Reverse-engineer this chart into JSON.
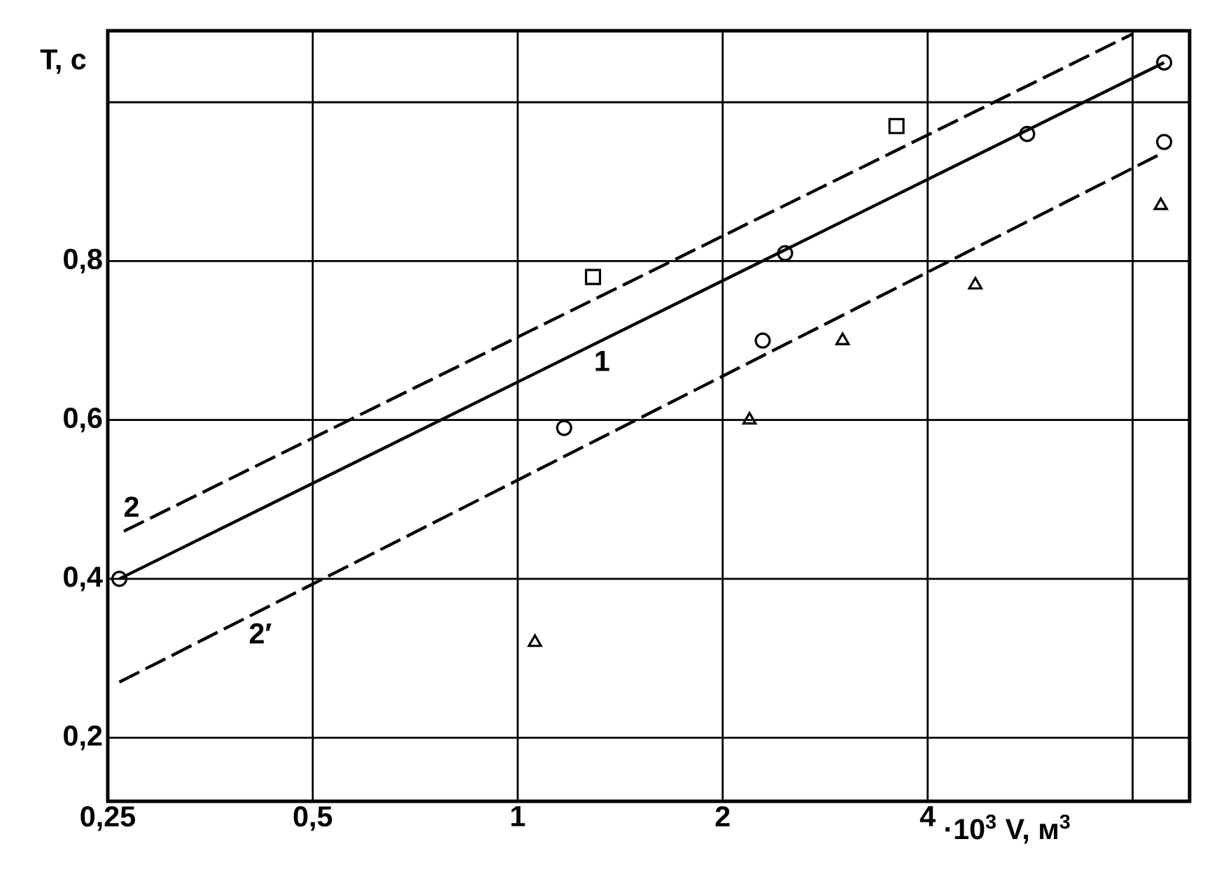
{
  "chart_data": {
    "type": "scatter",
    "xlabel": "·10$^{3}$ V, м$^{3}$",
    "ylabel": "T, c",
    "log": "x",
    "grid": true,
    "xlim": [
      0.25,
      9.7
    ],
    "ylim": [
      0.12,
      1.09
    ],
    "xticks": [
      {
        "value": 0.25,
        "label": "0,25"
      },
      {
        "value": 0.5,
        "label": "0,5"
      },
      1,
      2,
      4,
      {
        "value": 8,
        "label": null
      }
    ],
    "yticks": [
      {
        "value": 0.2,
        "label": "0,2"
      },
      {
        "value": 0.4,
        "label": "0,4"
      },
      {
        "value": 0.6,
        "label": "0,6"
      },
      {
        "value": 0.8,
        "label": "0,8"
      },
      {
        "value": 1.0,
        "label": null
      }
    ],
    "series": [
      {
        "marker": "circle",
        "color": "#000000",
        "x": [
          0.26,
          1.17,
          2.29,
          2.47,
          5.6,
          8.9,
          8.9
        ],
        "values": [
          0.4,
          0.59,
          0.7,
          0.81,
          0.96,
          1.05,
          0.95
        ]
      },
      {
        "marker": "square",
        "color": "#000000",
        "x": [
          1.29,
          3.6
        ],
        "values": [
          0.78,
          0.97
        ]
      },
      {
        "marker": "triangle",
        "color": "#000000",
        "x": [
          1.06,
          2.19,
          3.0,
          4.7,
          8.8
        ],
        "values": [
          0.32,
          0.6,
          0.7,
          0.77,
          0.87
        ]
      },
      {
        "type": "line",
        "name": "1",
        "line_style": "solid",
        "color": "#000000",
        "x": [
          0.26,
          8.9
        ],
        "values": [
          0.4,
          1.05
        ]
      },
      {
        "type": "line",
        "name": "2",
        "line_style": "dashed",
        "color": "#000000",
        "x": [
          0.264,
          8.0
        ],
        "values": [
          0.46,
          1.086
        ]
      },
      {
        "type": "line",
        "name": "2′",
        "line_style": "dashed",
        "color": "#000000",
        "x": [
          0.26,
          8.8
        ],
        "values": [
          0.27,
          0.935
        ]
      }
    ]
  }
}
